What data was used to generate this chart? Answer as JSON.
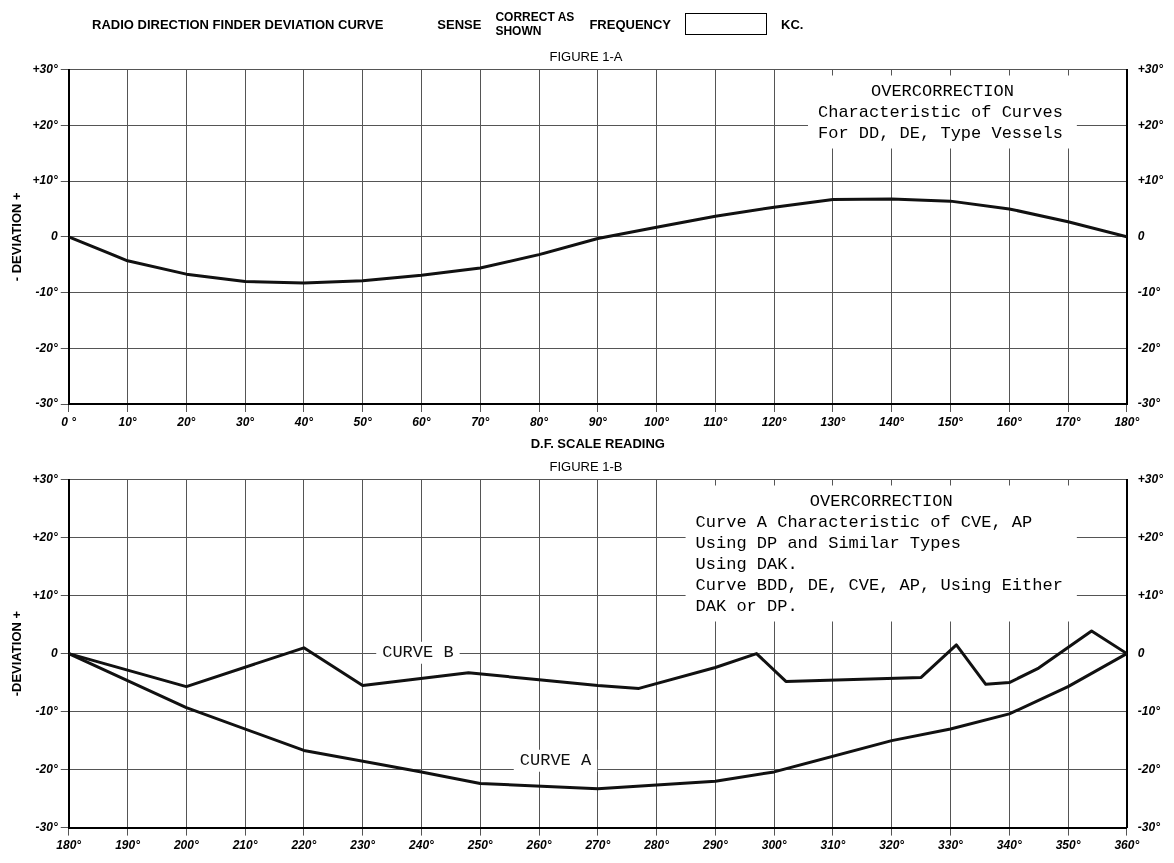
{
  "chart_data": [
    {
      "type": "other",
      "title": "RADIO DIRECTION FINDER DEVIATION CURVE",
      "annotations": [
        "SENSE",
        "CORRECT AS SHOWN",
        "FREQUENCY",
        "KC."
      ]
    },
    {
      "type": "line",
      "subtitle": "FIGURE 1-A",
      "xlabel": "D.F. SCALE READING",
      "ylabel": "- DEVIATION +",
      "x": [
        0,
        10,
        20,
        30,
        40,
        50,
        60,
        70,
        80,
        90,
        100,
        110,
        120,
        130,
        140,
        150,
        160,
        170,
        180
      ],
      "series": [
        {
          "color": "#111111",
          "values": [
            0,
            -4.3,
            -6.7,
            -8,
            -8.3,
            -7.9,
            -6.9,
            -5.6,
            -3.2,
            -0.3,
            1.7,
            3.7,
            5.3,
            6.7,
            6.8,
            6.4,
            5,
            2.7,
            0
          ]
        }
      ],
      "xlim": [
        0,
        180
      ],
      "xticks": [
        {
          "value": 0,
          "label": "0 °"
        },
        {
          "value": 10,
          "label": "10°"
        },
        {
          "value": 20,
          "label": "20°"
        },
        {
          "value": 30,
          "label": "30°"
        },
        {
          "value": 40,
          "label": "40°"
        },
        {
          "value": 50,
          "label": "50°"
        },
        {
          "value": 60,
          "label": "60°"
        },
        {
          "value": 70,
          "label": "70°"
        },
        {
          "value": 80,
          "label": "80°"
        },
        {
          "value": 90,
          "label": "90°"
        },
        {
          "value": 100,
          "label": "100°"
        },
        {
          "value": 110,
          "label": "110°"
        },
        {
          "value": 120,
          "label": "120°"
        },
        {
          "value": 130,
          "label": "130°"
        },
        {
          "value": 140,
          "label": "140°"
        },
        {
          "value": 150,
          "label": "150°"
        },
        {
          "value": 160,
          "label": "160°"
        },
        {
          "value": 170,
          "label": "170°"
        },
        {
          "value": 180,
          "label": "180°"
        }
      ],
      "ylim": [
        -30,
        30
      ],
      "yticks": [
        {
          "value": -30,
          "label": "-30°"
        },
        {
          "value": -20,
          "label": "-20°"
        },
        {
          "value": -10,
          "label": "-10°"
        },
        0,
        {
          "value": 10,
          "label": "+10°"
        },
        {
          "value": 20,
          "label": "+20°"
        },
        {
          "value": 30,
          "label": "+30°"
        }
      ],
      "y2lim": [
        -30,
        30
      ],
      "y2ticks": [
        {
          "value": -30,
          "label": "-30°"
        },
        {
          "value": -20,
          "label": "-20°"
        },
        {
          "value": -10,
          "label": "-10°"
        },
        0,
        {
          "value": 10,
          "label": "+10°"
        },
        {
          "value": 20,
          "label": "+20°"
        },
        {
          "value": 30,
          "label": "+30°"
        }
      ],
      "annotations": [
        "OVERCORRECTION",
        "Characteristic of Curves",
        "For DD, DE, Type Vessels"
      ],
      "grid": true,
      "legend": false,
      "marker": "none",
      "line_style": "solid"
    },
    {
      "type": "line",
      "title": "FIGURE 1-B",
      "ylabel": "-DEVIATION +",
      "series": [
        {
          "name": "CURVE B",
          "color": "#111111",
          "x": [
            180,
            200,
            220,
            230,
            248,
            260,
            270,
            277,
            290,
            297,
            302,
            325,
            331,
            336,
            340,
            345,
            354,
            360
          ],
          "values": [
            0,
            -5.7,
            1,
            -5.5,
            -3.3,
            -4.5,
            -5.5,
            -6,
            -2.4,
            0,
            -4.8,
            -4.1,
            1.5,
            -5.3,
            -5,
            -2.5,
            3.9,
            0
          ]
        },
        {
          "name": "CURVE A",
          "color": "#111111",
          "x": [
            180,
            200,
            220,
            240,
            250,
            270,
            290,
            300,
            320,
            330,
            340,
            350,
            360
          ],
          "values": [
            0,
            -9.3,
            -16.7,
            -20.4,
            -22.4,
            -23.3,
            -22,
            -20.4,
            -15,
            -13,
            -10.4,
            -5.7,
            0
          ]
        }
      ],
      "xlim": [
        180,
        360
      ],
      "xticks": [
        {
          "value": 180,
          "label": "180°"
        },
        {
          "value": 190,
          "label": "190°"
        },
        {
          "value": 200,
          "label": "200°"
        },
        {
          "value": 210,
          "label": "210°"
        },
        {
          "value": 220,
          "label": "220°"
        },
        {
          "value": 230,
          "label": "230°"
        },
        {
          "value": 240,
          "label": "240°"
        },
        {
          "value": 250,
          "label": "250°"
        },
        {
          "value": 260,
          "label": "260°"
        },
        {
          "value": 270,
          "label": "270°"
        },
        {
          "value": 280,
          "label": "280°"
        },
        {
          "value": 290,
          "label": "290°"
        },
        {
          "value": 300,
          "label": "300°"
        },
        {
          "value": 310,
          "label": "310°"
        },
        {
          "value": 320,
          "label": "320°"
        },
        {
          "value": 330,
          "label": "330°"
        },
        {
          "value": 340,
          "label": "340°"
        },
        {
          "value": 350,
          "label": "350°"
        },
        {
          "value": 360,
          "label": "360°"
        }
      ],
      "ylim": [
        -30,
        30
      ],
      "yticks": [
        {
          "value": -30,
          "label": "-30°"
        },
        {
          "value": -20,
          "label": "-20°"
        },
        {
          "value": -10,
          "label": "-10°"
        },
        0,
        {
          "value": 10,
          "label": "+10°"
        },
        {
          "value": 20,
          "label": "+20°"
        },
        {
          "value": 30,
          "label": "+30°"
        }
      ],
      "y2lim": [
        -30,
        30
      ],
      "y2ticks": [
        {
          "value": -30,
          "label": "-30°"
        },
        {
          "value": -20,
          "label": "-20°"
        },
        {
          "value": -10,
          "label": "-10°"
        },
        0,
        {
          "value": 10,
          "label": "+10°"
        },
        {
          "value": 20,
          "label": "+20°"
        },
        {
          "value": 30,
          "label": "+30°"
        }
      ],
      "annotations": [
        "OVERCORRECTION",
        "Curve A Characteristic of CVE, AP",
        "Using DP and Similar Types",
        "Using DAK.",
        "Curve BDD, DE, CVE, AP, Using Either",
        "DAK or DP."
      ],
      "grid": true,
      "legend": false,
      "marker": "none",
      "line_style": "solid"
    }
  ]
}
